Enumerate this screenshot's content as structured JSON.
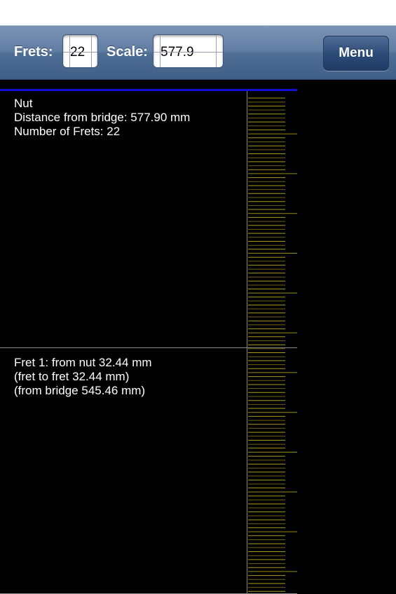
{
  "toolbar": {
    "frets_label": "Frets:",
    "frets_value": "22",
    "scale_label": "Scale:",
    "scale_value": "577.9",
    "menu_label": "Menu"
  },
  "entries": [
    {
      "line1": "Nut",
      "line2": "Distance from bridge: 577.90 mm",
      "line3": "Number of Frets: 22"
    },
    {
      "line1": "Fret 1: from nut 32.44 mm",
      "line2": "(fret to fret 32.44 mm)",
      "line3": "(from bridge 545.46 mm)"
    }
  ],
  "colors": {
    "toolbar": "#5f7ca1",
    "nut_line": "#1010d6",
    "ruler_tick": "#b3a31c",
    "divider": "#8b8b8b"
  }
}
